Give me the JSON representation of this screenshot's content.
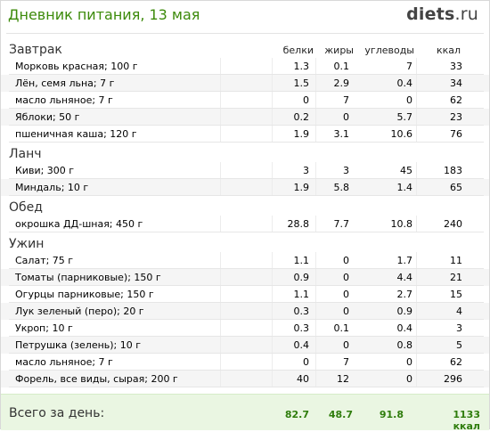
{
  "header": {
    "title": "Дневник питания, 13 мая",
    "logo_bold": "diets",
    "logo_rest": ".ru"
  },
  "columns": [
    "белки",
    "жиры",
    "углеводы",
    "ккал"
  ],
  "meals": [
    {
      "name": "Завтрак",
      "items": [
        {
          "name": "Морковь красная; 100 г",
          "protein": "1.3",
          "fat": "0.1",
          "carbs": "7",
          "kcal": "33"
        },
        {
          "name": "Лён, семя льна; 7 г",
          "protein": "1.5",
          "fat": "2.9",
          "carbs": "0.4",
          "kcal": "34"
        },
        {
          "name": "масло льняное; 7 г",
          "protein": "0",
          "fat": "7",
          "carbs": "0",
          "kcal": "62"
        },
        {
          "name": "Яблоки; 50 г",
          "protein": "0.2",
          "fat": "0",
          "carbs": "5.7",
          "kcal": "23"
        },
        {
          "name": "пшеничная каша; 120 г",
          "protein": "1.9",
          "fat": "3.1",
          "carbs": "10.6",
          "kcal": "76"
        }
      ]
    },
    {
      "name": "Ланч",
      "items": [
        {
          "name": "Киви; 300 г",
          "protein": "3",
          "fat": "3",
          "carbs": "45",
          "kcal": "183"
        },
        {
          "name": "Миндаль; 10 г",
          "protein": "1.9",
          "fat": "5.8",
          "carbs": "1.4",
          "kcal": "65"
        }
      ]
    },
    {
      "name": "Обед",
      "items": [
        {
          "name": "окрошка ДД-шная; 450 г",
          "protein": "28.8",
          "fat": "7.7",
          "carbs": "10.8",
          "kcal": "240"
        }
      ]
    },
    {
      "name": "Ужин",
      "items": [
        {
          "name": "Салат; 75 г",
          "protein": "1.1",
          "fat": "0",
          "carbs": "1.7",
          "kcal": "11"
        },
        {
          "name": "Томаты (парниковые); 150 г",
          "protein": "0.9",
          "fat": "0",
          "carbs": "4.4",
          "kcal": "21"
        },
        {
          "name": "Огурцы парниковые; 150 г",
          "protein": "1.1",
          "fat": "0",
          "carbs": "2.7",
          "kcal": "15"
        },
        {
          "name": "Лук зеленый (перо); 20 г",
          "protein": "0.3",
          "fat": "0",
          "carbs": "0.9",
          "kcal": "4"
        },
        {
          "name": "Укроп; 10 г",
          "protein": "0.3",
          "fat": "0.1",
          "carbs": "0.4",
          "kcal": "3"
        },
        {
          "name": "Петрушка (зелень); 10 г",
          "protein": "0.4",
          "fat": "0",
          "carbs": "0.8",
          "kcal": "5"
        },
        {
          "name": "масло льняное; 7 г",
          "protein": "0",
          "fat": "7",
          "carbs": "0",
          "kcal": "62"
        },
        {
          "name": "Форель, все виды, сырая; 200 г",
          "protein": "40",
          "fat": "12",
          "carbs": "0",
          "kcal": "296"
        }
      ]
    }
  ],
  "total": {
    "label": "Всего за день:",
    "protein": "82.7",
    "fat": "48.7",
    "carbs": "91.8",
    "kcal": "1133 ккал"
  }
}
